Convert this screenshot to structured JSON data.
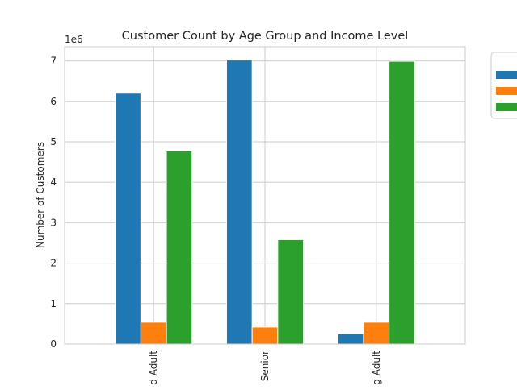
{
  "chart_data": {
    "type": "bar",
    "title": "Customer Count by Age Group and Income Level",
    "xlabel": "",
    "ylabel": "Number of Customers",
    "scale_label": "1e6",
    "categories": [
      "d Adult",
      "Senior",
      "g Adult"
    ],
    "series": [
      {
        "values": [
          6200000,
          7020000,
          250000
        ],
        "color": "#1f77b4"
      },
      {
        "values": [
          540000,
          420000,
          540000
        ],
        "color": "#ff7f0e"
      },
      {
        "values": [
          4770000,
          2580000,
          6990000
        ],
        "color": "#2ca02c"
      }
    ],
    "ylim": [
      0,
      7350000
    ],
    "yticks": [
      "0",
      "1",
      "2",
      "3",
      "4",
      "5",
      "6",
      "7"
    ],
    "grid": true,
    "legend_placement": "upper right, outside plot (clipped)"
  }
}
